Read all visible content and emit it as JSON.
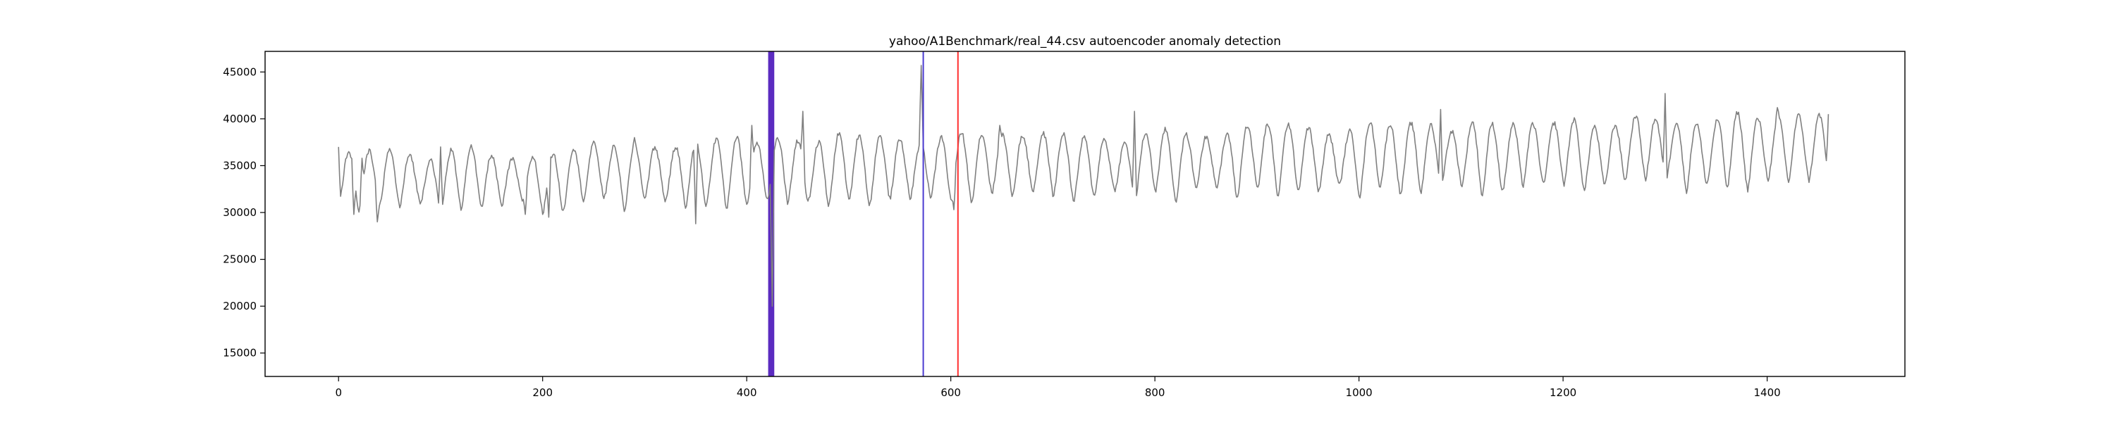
{
  "chart_data": {
    "type": "line",
    "title": "yahoo/A1Benchmark/real_44.csv autoencoder anomaly detection",
    "xlabel": "",
    "ylabel": "",
    "xlim": [
      -72,
      1535
    ],
    "ylim": [
      12500,
      47200
    ],
    "x_ticks": [
      0,
      200,
      400,
      600,
      800,
      1000,
      1200,
      1400
    ],
    "y_ticks": [
      15000,
      20000,
      25000,
      30000,
      35000,
      40000,
      45000
    ],
    "grid": false,
    "legend": "none",
    "colors": {
      "series": "#808080",
      "anomaly_band": "#5b2bc0",
      "predicted_line": "#4b3bd0",
      "true_line": "#ff3030",
      "axes": "#000000"
    },
    "series": [
      {
        "color": "#808080",
        "n_points": 1461,
        "x_start": 0,
        "x_step": 1,
        "cycle_count": 73,
        "key_points": [
          {
            "x": 0,
            "y": 37000
          },
          {
            "x": 15,
            "y": 29800
          },
          {
            "x": 23,
            "y": 35800
          },
          {
            "x": 38,
            "y": 29000
          },
          {
            "x": 100,
            "y": 37000
          },
          {
            "x": 183,
            "y": 29800
          },
          {
            "x": 206,
            "y": 29500
          },
          {
            "x": 290,
            "y": 38000
          },
          {
            "x": 350,
            "y": 28800
          },
          {
            "x": 405,
            "y": 39300
          },
          {
            "x": 425,
            "y": 20000
          },
          {
            "x": 455,
            "y": 40800
          },
          {
            "x": 571,
            "y": 45700
          },
          {
            "x": 603,
            "y": 30300
          },
          {
            "x": 648,
            "y": 39300
          },
          {
            "x": 780,
            "y": 40800
          },
          {
            "x": 1080,
            "y": 41000
          },
          {
            "x": 1300,
            "y": 42700
          },
          {
            "x": 1410,
            "y": 41200
          },
          {
            "x": 1460,
            "y": 40500
          }
        ]
      }
    ],
    "anomaly_spans": [
      {
        "x_start": 421,
        "x_end": 427,
        "color": "#5b2bc0"
      }
    ],
    "vertical_lines": [
      {
        "x": 573,
        "color": "#4b3bd0"
      },
      {
        "x": 607,
        "color": "#ff3030"
      }
    ]
  }
}
